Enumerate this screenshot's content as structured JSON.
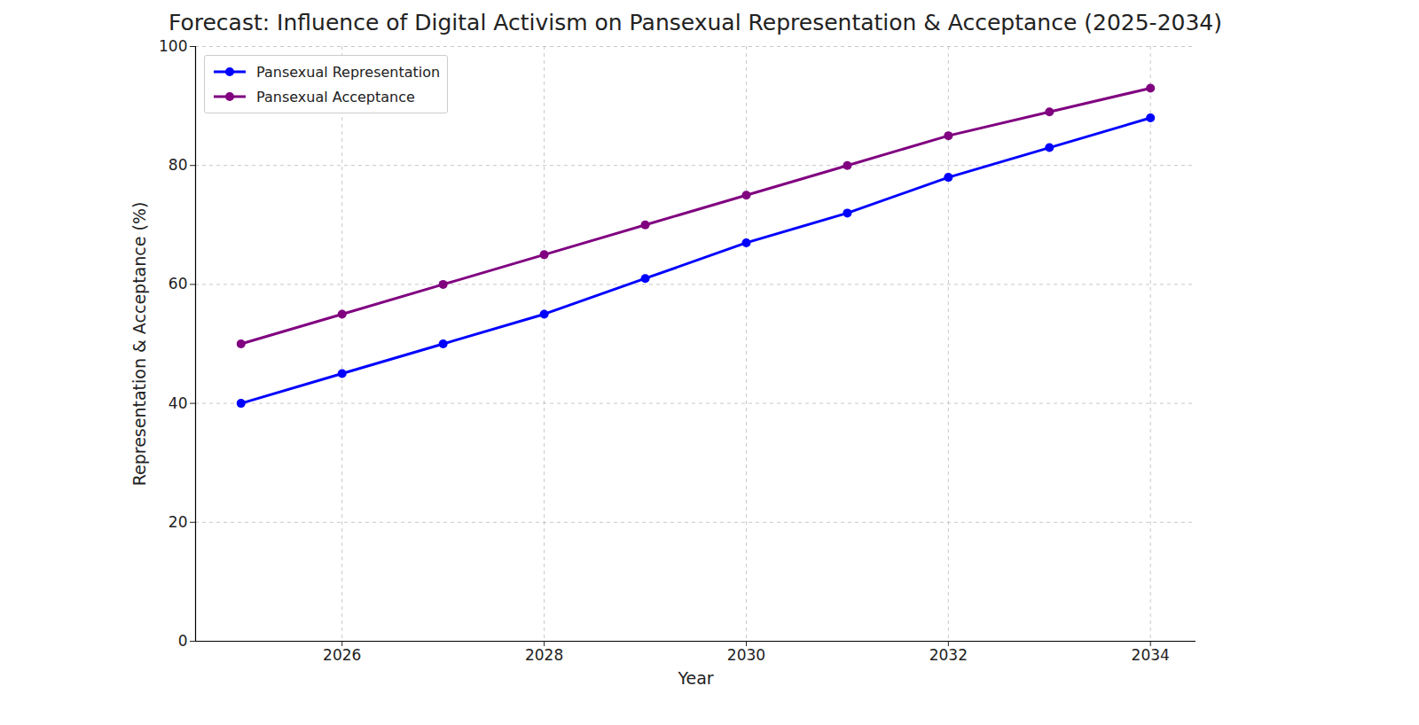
{
  "chart_data": {
    "type": "line",
    "title": "Forecast: Influence of Digital Activism on Pansexual Representation & Acceptance (2025-2034)",
    "x_label": "Year",
    "y_label": "Representation & Acceptance (%)",
    "x": [
      2025,
      2026,
      2027,
      2028,
      2029,
      2030,
      2031,
      2032,
      2033,
      2034
    ],
    "series": [
      {
        "name": "Pansexual Representation",
        "color": "#0000ff",
        "values": [
          40,
          45,
          50,
          55,
          61,
          67,
          72,
          78,
          83,
          88
        ],
        "marker": "circle",
        "line_style": "solid"
      },
      {
        "name": "Pansexual Acceptance",
        "color": "#800080",
        "values": [
          50,
          55,
          60,
          65,
          70,
          75,
          80,
          85,
          89,
          93
        ],
        "marker": "circle",
        "line_style": "solid"
      }
    ],
    "xlim": [
      2024.55,
      2034.45
    ],
    "xticks": [
      2026,
      2028,
      2030,
      2032,
      2034
    ],
    "ylim": [
      0,
      100
    ],
    "yticks": [
      0,
      20,
      40,
      60,
      80,
      100
    ],
    "grid": true,
    "legend": "upper left"
  }
}
